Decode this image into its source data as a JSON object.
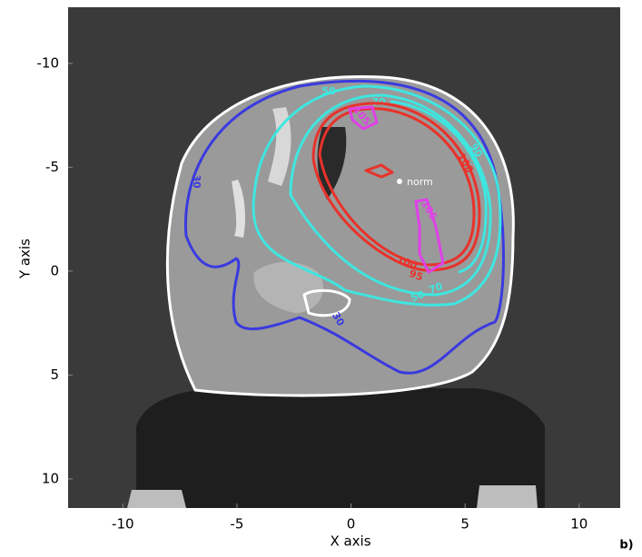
{
  "chart_data": {
    "type": "contour",
    "xlabel": "X axis",
    "ylabel": "Y axis",
    "panel_label": "b)",
    "xlim": [
      -12.4,
      11.8
    ],
    "ylim": [
      -12.7,
      11.4
    ],
    "y_inverted": true,
    "xticks": [
      -10,
      -5,
      0,
      5,
      10
    ],
    "yticks": [
      -10,
      -5,
      0,
      5,
      10
    ],
    "contours": [
      {
        "level": 30,
        "color": "#3a3ae0"
      },
      {
        "level": 50,
        "color": "#3ee6e0"
      },
      {
        "level": 70,
        "color": "#3ee6e0"
      },
      {
        "level": 90,
        "color": "#3ee6e0"
      },
      {
        "level": 95,
        "color": "#e8322a"
      },
      {
        "level": 100,
        "color": "#e8322a"
      },
      {
        "level": 105,
        "color": "#e040e8"
      }
    ],
    "annotations": [
      "norm"
    ]
  }
}
